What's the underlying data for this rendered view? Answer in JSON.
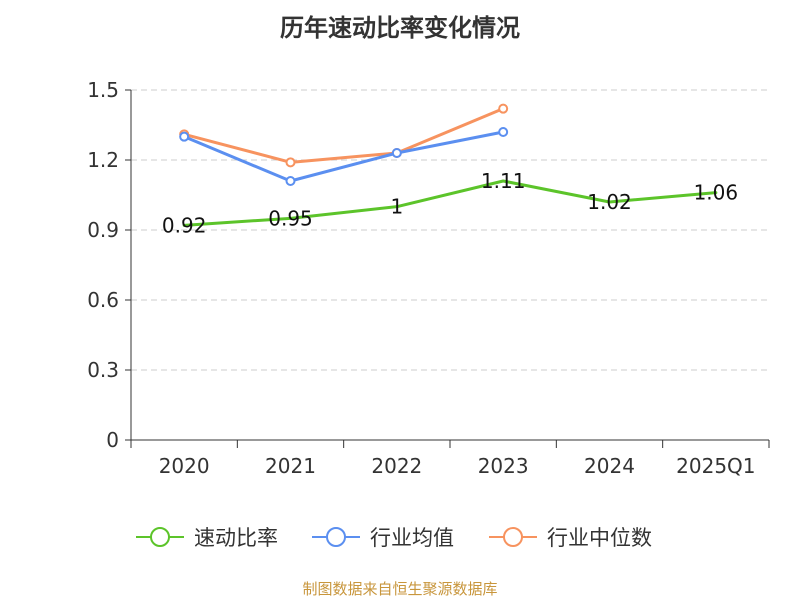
{
  "title": "历年速动比率变化情况",
  "source": "制图数据来自恒生聚源数据库",
  "colors": {
    "speed_ratio": "#5cc42a",
    "industry_mean": "#5b8ff0",
    "industry_median": "#f7935f",
    "grid": "#cccccc",
    "axis": "#333333",
    "source_text": "#c8963c"
  },
  "chart_data": {
    "type": "line",
    "title": "历年速动比率变化情况",
    "xlabel": "",
    "ylabel": "",
    "categories": [
      "2020",
      "2021",
      "2022",
      "2023",
      "2024",
      "2025Q1"
    ],
    "ylim": [
      0,
      1.5
    ],
    "yticks": [
      0,
      0.3,
      0.6,
      0.9,
      1.2,
      1.5
    ],
    "ytick_labels": [
      "0",
      "0.3",
      "0.6",
      "0.9",
      "1.2",
      "1.5"
    ],
    "grid": true,
    "legend_position": "bottom",
    "series": [
      {
        "name": "速动比率",
        "color": "#5cc42a",
        "values": [
          0.92,
          0.95,
          1.0,
          1.11,
          1.02,
          1.06
        ],
        "labels": [
          "0.92",
          "0.95",
          "1",
          "1.11",
          "1.02",
          "1.06"
        ],
        "show_markers": false
      },
      {
        "name": "行业均值",
        "color": "#5b8ff0",
        "values": [
          1.3,
          1.11,
          1.23,
          1.32,
          null,
          null
        ],
        "show_markers": true
      },
      {
        "name": "行业中位数",
        "color": "#f7935f",
        "values": [
          1.31,
          1.19,
          1.23,
          1.42,
          null,
          null
        ],
        "show_markers": true
      }
    ]
  }
}
